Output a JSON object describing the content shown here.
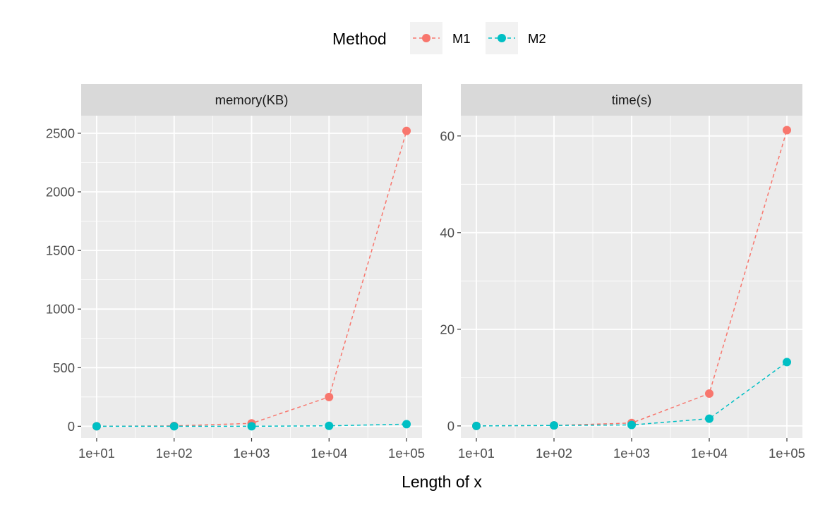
{
  "chart_data": {
    "type": "line",
    "legend": {
      "title": "Method",
      "placement": "top",
      "items": [
        {
          "name": "M1",
          "color": "#F8766D"
        },
        {
          "name": "M2",
          "color": "#00BFC4"
        }
      ]
    },
    "xlabel": "Length of x",
    "x": [
      10,
      100,
      1000,
      10000,
      100000
    ],
    "x_tick_labels": [
      "1e+01",
      "1e+02",
      "1e+03",
      "1e+04",
      "1e+05"
    ],
    "x_scale": "log10",
    "grid": true,
    "panels": [
      {
        "strip": "memory(KB)",
        "ylim": [
          -100,
          2650
        ],
        "y_ticks": [
          0,
          500,
          1000,
          1500,
          2000,
          2500
        ],
        "y_tick_labels": [
          "0",
          "500",
          "1000",
          "1500",
          "2000",
          "2500"
        ],
        "series": [
          {
            "name": "M1",
            "values": [
              0,
              3,
              25,
              250,
              2520
            ]
          },
          {
            "name": "M2",
            "values": [
              0,
              0,
              0,
              4,
              18
            ]
          }
        ]
      },
      {
        "strip": "time(s)",
        "ylim": [
          -2.5,
          64.2
        ],
        "y_ticks": [
          0,
          20,
          40,
          60
        ],
        "y_tick_labels": [
          "0",
          "20",
          "40",
          "60"
        ],
        "series": [
          {
            "name": "M1",
            "values": [
              0,
              0.1,
              0.6,
              6.7,
              61.2
            ]
          },
          {
            "name": "M2",
            "values": [
              0,
              0.1,
              0.2,
              1.5,
              13.2
            ]
          }
        ]
      }
    ]
  }
}
